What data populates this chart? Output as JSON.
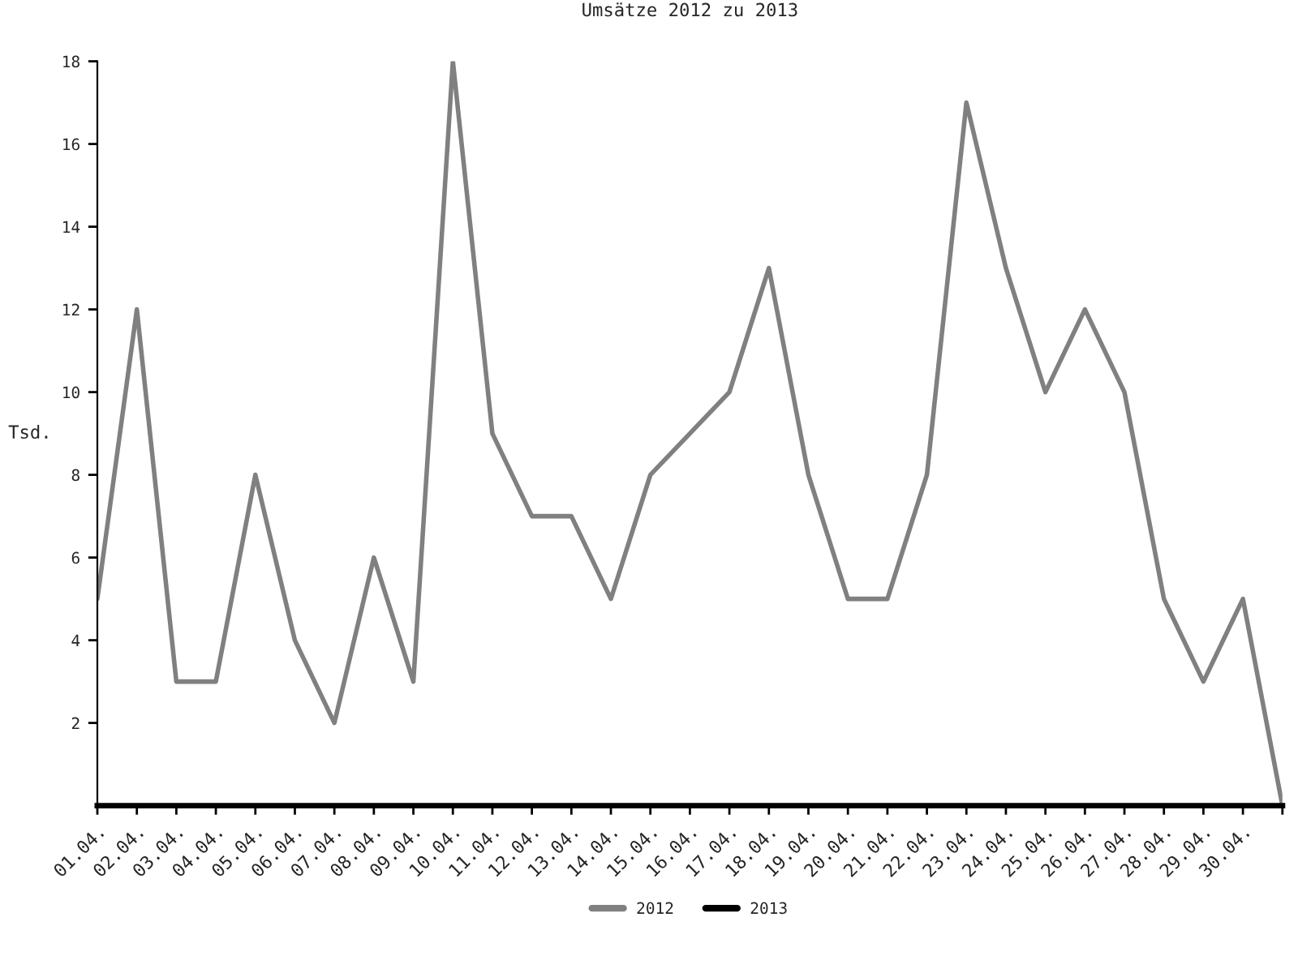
{
  "chart_data": {
    "type": "line",
    "title": "Umsätze 2012 zu 2013",
    "ylabel": "Tsd.",
    "categories": [
      "01.04.",
      "02.04.",
      "03.04.",
      "04.04.",
      "05.04.",
      "06.04.",
      "07.04.",
      "08.04.",
      "09.04.",
      "10.04.",
      "11.04.",
      "12.04.",
      "13.04.",
      "14.04.",
      "15.04.",
      "16.04.",
      "17.04.",
      "18.04.",
      "19.04.",
      "20.04.",
      "21.04.",
      "22.04.",
      "23.04.",
      "24.04.",
      "25.04.",
      "26.04.",
      "27.04.",
      "28.04.",
      "29.04.",
      "30.04.",
      null
    ],
    "series": [
      {
        "name": "2012",
        "color": "#808080",
        "values": [
          5,
          12,
          3,
          3,
          8,
          4,
          2,
          6,
          3,
          18,
          9,
          7,
          7,
          5,
          8,
          9,
          10,
          13,
          8,
          5,
          5,
          8,
          17,
          13,
          10,
          12,
          10,
          5,
          3,
          5,
          0
        ]
      },
      {
        "name": "2013",
        "color": "#000000",
        "values": [
          null,
          null,
          null,
          null,
          null,
          null,
          null,
          null,
          null,
          null,
          null,
          null,
          null,
          null,
          null,
          null,
          null,
          null,
          null,
          null,
          null,
          null,
          null,
          null,
          null,
          null,
          null,
          null,
          null,
          null,
          null
        ]
      }
    ],
    "ylim": [
      0,
      18
    ],
    "yticks": [
      2,
      4,
      6,
      8,
      10,
      12,
      14,
      16,
      18
    ],
    "legend": "bottom",
    "grid": false
  }
}
